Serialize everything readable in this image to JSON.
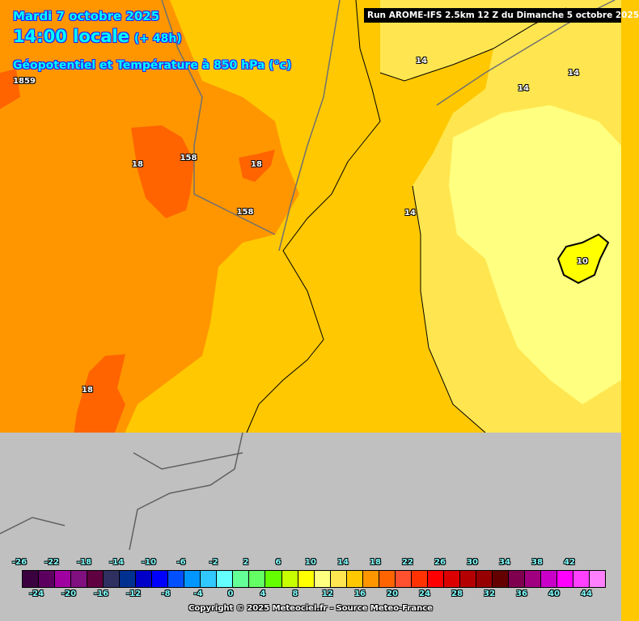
{
  "header": {
    "date": "Mardi 7 octobre 2025",
    "time": "14:00 locale",
    "lead": "(+ 48h)",
    "parameter": "Géopotentiel et Température à 850 hPa (°c)",
    "run": "Run AROME-IFS 2.5km 12 Z du Dimanche 5 octobre 2025"
  },
  "map_labels": [
    {
      "text": "1859",
      "kind": "geopotential"
    },
    {
      "text": "18",
      "kind": "temperature"
    },
    {
      "text": "158",
      "kind": "geopotential"
    },
    {
      "text": "18",
      "kind": "temperature"
    },
    {
      "text": "158",
      "kind": "geopotential"
    },
    {
      "text": "14",
      "kind": "temperature"
    },
    {
      "text": "14",
      "kind": "temperature"
    },
    {
      "text": "14",
      "kind": "temperature"
    },
    {
      "text": "14",
      "kind": "temperature"
    },
    {
      "text": "10",
      "kind": "temperature"
    },
    {
      "text": "18",
      "kind": "temperature"
    }
  ],
  "legend": {
    "colors": [
      "#3a0040",
      "#5c0060",
      "#a000a0",
      "#801080",
      "#600040",
      "#303060",
      "#003090",
      "#0000c8",
      "#0000ff",
      "#0050ff",
      "#0096ff",
      "#30c8ff",
      "#64ffff",
      "#64ff96",
      "#64ff64",
      "#64ff00",
      "#c8ff00",
      "#ffff00",
      "#ffff80",
      "#ffe650",
      "#ffc800",
      "#ff9600",
      "#ff6400",
      "#ff5030",
      "#ff3200",
      "#ff0000",
      "#dc0000",
      "#b40000",
      "#960000",
      "#640000",
      "#800050",
      "#a00080",
      "#c800c8",
      "#ff00ff",
      "#ff40ff",
      "#ff80ff"
    ],
    "top_ticks": [
      "-26",
      "-22",
      "-18",
      "-14",
      "-10",
      "-6",
      "-2",
      "2",
      "6",
      "10",
      "14",
      "18",
      "22",
      "26",
      "30",
      "34",
      "38",
      "42"
    ],
    "bottom_ticks": [
      "-24",
      "-20",
      "-16",
      "-12",
      "-8",
      "-4",
      "0",
      "4",
      "8",
      "12",
      "16",
      "20",
      "24",
      "28",
      "32",
      "36",
      "40",
      "44"
    ],
    "unit": "°c"
  },
  "copyright": "Copyright © 2025 Meteociel.fr - Source Meteo-France",
  "colors": {
    "no_data": "#c0c0c0",
    "title_text": "#00ffff"
  }
}
